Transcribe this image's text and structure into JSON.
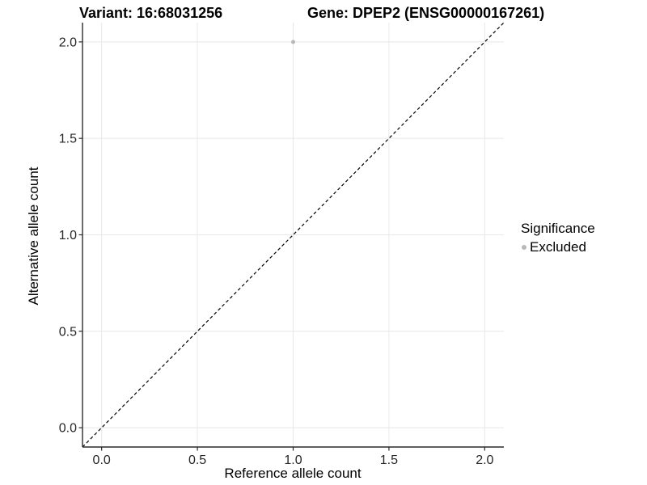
{
  "chart_data": {
    "type": "scatter",
    "titles": {
      "left": "Variant: 16:68031256",
      "right": "Gene: DPEP2 (ENSG00000167261)"
    },
    "xlabel": "Reference allele count",
    "ylabel": "Alternative allele count",
    "xlim": [
      -0.1,
      2.1
    ],
    "ylim": [
      -0.1,
      2.1
    ],
    "x_ticks": [
      0,
      0.5,
      1,
      1.5,
      2
    ],
    "x_tick_labels": [
      "0.0",
      "0.5",
      "1.0",
      "1.5",
      "2.0"
    ],
    "y_ticks": [
      0,
      0.5,
      1,
      1.5,
      2
    ],
    "y_tick_labels": [
      "0.0",
      "0.5",
      "1.0",
      "1.5",
      "2.0"
    ],
    "grid": true,
    "legend": {
      "position": "right",
      "title": "Significance",
      "entries": [
        {
          "label": "Excluded",
          "color": "#b8b8b8"
        }
      ]
    },
    "series": [
      {
        "name": "Excluded",
        "color": "#b8b8b8",
        "points": [
          {
            "x": 1.0,
            "y": 2.0
          }
        ]
      }
    ],
    "reference_line": {
      "kind": "identity y=x",
      "style": "dashed",
      "color": "#000000"
    }
  },
  "colors": {
    "grid": "#e8e8e8",
    "axis_line": "#2b2b2b",
    "tick_label": "#262626",
    "background": "#ffffff"
  }
}
